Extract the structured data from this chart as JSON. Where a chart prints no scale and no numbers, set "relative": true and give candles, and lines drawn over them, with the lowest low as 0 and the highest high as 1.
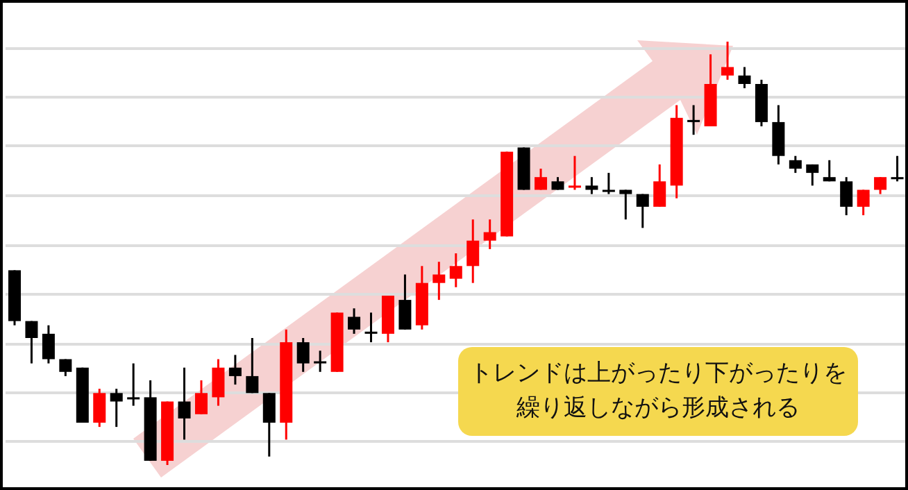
{
  "chart_data": {
    "type": "candlestick",
    "relative": true,
    "grid": "y",
    "tick_labels": false,
    "categories": [
      null,
      null,
      null,
      null,
      null,
      null,
      null,
      null,
      null,
      null,
      null,
      null,
      null,
      null,
      null,
      null,
      null,
      null,
      null,
      null,
      null,
      null,
      null,
      null,
      null,
      null,
      null,
      null,
      null,
      null,
      null,
      null,
      null,
      null,
      null,
      null,
      null,
      null,
      null,
      null,
      null,
      null,
      null,
      null,
      null,
      null,
      null,
      null,
      null,
      null,
      null,
      null,
      null
    ],
    "ohlc": [
      [
        0.46,
        0.46,
        0.33,
        0.34
      ],
      [
        0.34,
        0.34,
        0.24,
        0.3
      ],
      [
        0.31,
        0.33,
        0.24,
        0.25
      ],
      [
        0.25,
        0.25,
        0.21,
        0.22
      ],
      [
        0.23,
        0.23,
        0.1,
        0.1
      ],
      [
        0.1,
        0.18,
        0.09,
        0.17
      ],
      [
        0.17,
        0.18,
        0.09,
        0.15
      ],
      [
        0.16,
        0.24,
        0.14,
        0.155
      ],
      [
        0.16,
        0.2,
        0.01,
        0.01
      ],
      [
        0.01,
        0.15,
        0,
        0.15
      ],
      [
        0.15,
        0.23,
        0.06,
        0.11
      ],
      [
        0.12,
        0.2,
        0.12,
        0.17
      ],
      [
        0.16,
        0.25,
        0.14,
        0.23
      ],
      [
        0.23,
        0.26,
        0.19,
        0.21
      ],
      [
        0.21,
        0.3,
        0.17,
        0.17
      ],
      [
        0.17,
        0.17,
        0.02,
        0.1
      ],
      [
        0.1,
        0.32,
        0.06,
        0.29
      ],
      [
        0.29,
        0.3,
        0.22,
        0.24
      ],
      [
        0.245,
        0.27,
        0.22,
        0.24
      ],
      [
        0.22,
        0.36,
        0.22,
        0.36
      ],
      [
        0.35,
        0.37,
        0.31,
        0.32
      ],
      [
        0.315,
        0.36,
        0.29,
        0.31
      ],
      [
        0.31,
        0.4,
        0.29,
        0.4
      ],
      [
        0.39,
        0.45,
        0.32,
        0.32
      ],
      [
        0.33,
        0.47,
        0.32,
        0.43
      ],
      [
        0.43,
        0.48,
        0.39,
        0.45
      ],
      [
        0.44,
        0.5,
        0.42,
        0.47
      ],
      [
        0.47,
        0.58,
        0.43,
        0.53
      ],
      [
        0.53,
        0.58,
        0.51,
        0.55
      ],
      [
        0.54,
        0.74,
        0.54,
        0.74
      ],
      [
        0.75,
        0.75,
        0.65,
        0.65
      ],
      [
        0.65,
        0.7,
        0.65,
        0.68
      ],
      [
        0.67,
        0.68,
        0.65,
        0.65
      ],
      [
        0.655,
        0.73,
        0.65,
        0.66
      ],
      [
        0.66,
        0.68,
        0.64,
        0.65
      ],
      [
        0.65,
        0.69,
        0.64,
        0.645
      ],
      [
        0.65,
        0.65,
        0.58,
        0.64
      ],
      [
        0.64,
        0.64,
        0.56,
        0.61
      ],
      [
        0.61,
        0.71,
        0.61,
        0.67
      ],
      [
        0.66,
        0.85,
        0.63,
        0.82
      ],
      [
        0.815,
        0.85,
        0.78,
        0.81
      ],
      [
        0.8,
        0.97,
        0.8,
        0.9
      ],
      [
        0.92,
        1,
        0.91,
        0.94
      ],
      [
        0.92,
        0.94,
        0.89,
        0.9
      ],
      [
        0.9,
        0.91,
        0.8,
        0.81
      ],
      [
        0.81,
        0.85,
        0.71,
        0.73
      ],
      [
        0.72,
        0.73,
        0.69,
        0.7
      ],
      [
        0.71,
        0.71,
        0.66,
        0.69
      ],
      [
        0.68,
        0.72,
        0.67,
        0.67
      ],
      [
        0.67,
        0.68,
        0.59,
        0.61
      ],
      [
        0.61,
        0.65,
        0.59,
        0.65
      ],
      [
        0.65,
        0.68,
        0.64,
        0.68
      ],
      [
        0.68,
        0.73,
        0.67,
        0.675
      ]
    ],
    "colors": [
      "#000000",
      "#000000",
      "#000000",
      "#000000",
      "#000000",
      "#ff0000",
      "#000000",
      "#000000",
      "#000000",
      "#ff0000",
      "#000000",
      "#ff0000",
      "#ff0000",
      "#000000",
      "#000000",
      "#000000",
      "#ff0000",
      "#000000",
      "#000000",
      "#ff0000",
      "#000000",
      "#000000",
      "#ff0000",
      "#000000",
      "#ff0000",
      "#ff0000",
      "#ff0000",
      "#ff0000",
      "#ff0000",
      "#ff0000",
      "#000000",
      "#ff0000",
      "#000000",
      "#ff0000",
      "#000000",
      "#000000",
      "#000000",
      "#000000",
      "#ff0000",
      "#ff0000",
      "#000000",
      "#ff0000",
      "#ff0000",
      "#000000",
      "#000000",
      "#000000",
      "#000000",
      "#000000",
      "#000000",
      "#000000",
      "#ff0000",
      "#ff0000",
      "#000000"
    ],
    "annotations": [
      "トレンドは上がったり下がったりを",
      "繰り返しながら形成される"
    ]
  }
}
